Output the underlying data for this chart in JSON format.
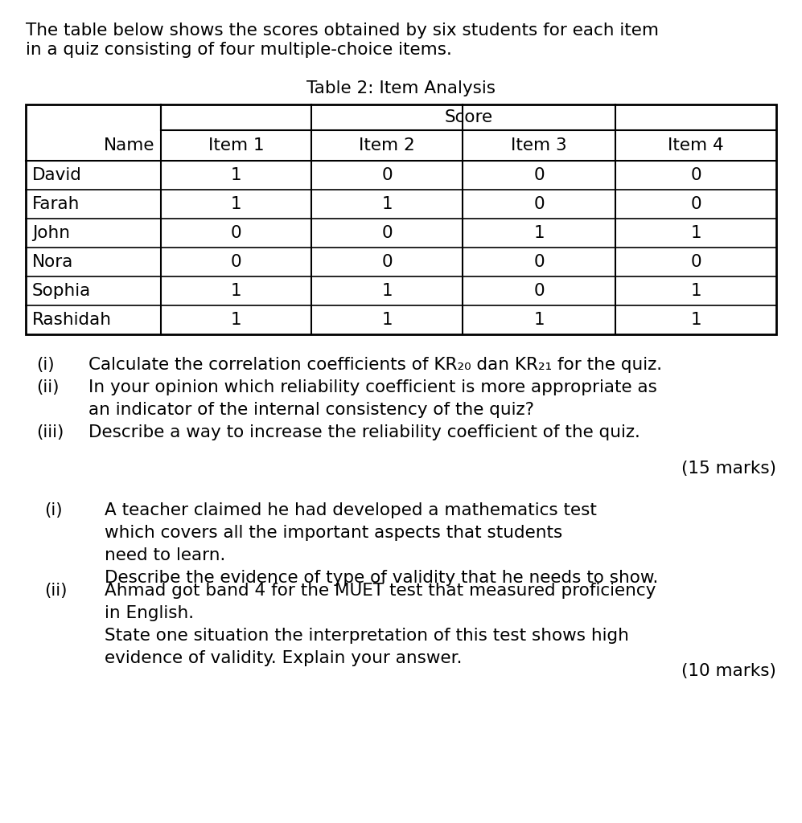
{
  "intro_text_line1": "The table below shows the scores obtained by six students for each item",
  "intro_text_line2": "in a quiz consisting of four multiple-choice items.",
  "table_title": "Table 2: Item Analysis",
  "col_header_top": "Score",
  "col_headers": [
    "Name",
    "Item 1",
    "Item 2",
    "Item 3",
    "Item 4"
  ],
  "rows": [
    [
      "David",
      "1",
      "0",
      "0",
      "0"
    ],
    [
      "Farah",
      "1",
      "1",
      "0",
      "0"
    ],
    [
      "John",
      "0",
      "0",
      "1",
      "1"
    ],
    [
      "Nora",
      "0",
      "0",
      "0",
      "0"
    ],
    [
      "Sophia",
      "1",
      "1",
      "0",
      "1"
    ],
    [
      "Rashidah",
      "1",
      "1",
      "1",
      "1"
    ]
  ],
  "q1_label": "(i)",
  "q1_text": "Calculate the correlation coefficients of KR₂₀ dan KR₂₁ for the quiz.",
  "q2_label": "(ii)",
  "q2_text": "In your opinion which reliability coefficient is more appropriate as\nan indicator of the internal consistency of the quiz?",
  "q3_label": "(iii)",
  "q3_text": "Describe a way to increase the reliability coefficient of the quiz.",
  "marks1": "(15 marks)",
  "s2q1_label": "(i)",
  "s2q1_text": "A teacher claimed he had developed a mathematics test\nwhich covers all the important aspects that students\nneed to learn.\nDescribe the evidence of type of validity that he needs to show.",
  "s2q2_label": "(ii)",
  "s2q2_text": "Ahmad got band 4 for the MUET test that measured proficiency\nin English.\nState one situation the interpretation of this test shows high\nevidence of validity. Explain your answer.",
  "marks2": "(10 marks)",
  "bg_color": "#ffffff",
  "text_color": "#000000"
}
